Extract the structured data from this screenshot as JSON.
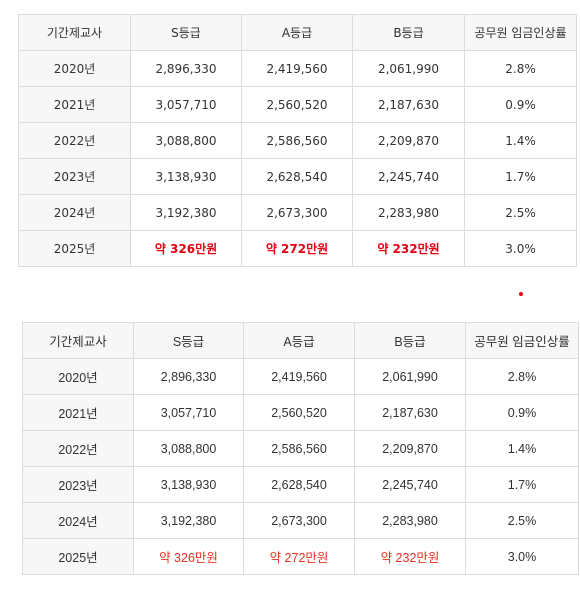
{
  "table": {
    "headers": [
      "기간제교사",
      "S등급",
      "A등급",
      "B등급",
      "공무원 임금인상률"
    ],
    "rows": [
      [
        "2020년",
        "2,896,330",
        "2,419,560",
        "2,061,990",
        "2.8%"
      ],
      [
        "2021년",
        "3,057,710",
        "2,560,520",
        "2,187,630",
        "0.9%"
      ],
      [
        "2022년",
        "3,088,800",
        "2,586,560",
        "2,209,870",
        "1.4%"
      ],
      [
        "2023년",
        "3,138,930",
        "2,628,540",
        "2,245,740",
        "1.7%"
      ],
      [
        "2024년",
        "3,192,380",
        "2,673,300",
        "2,283,980",
        "2.5%"
      ],
      [
        "2025년",
        "약 326만원",
        "약 272만원",
        "약 232만원",
        "3.0%"
      ]
    ]
  },
  "colors": {
    "highlight": "#e60012",
    "header_bg": "#f7f7f7",
    "border": "#dcdcdc"
  }
}
